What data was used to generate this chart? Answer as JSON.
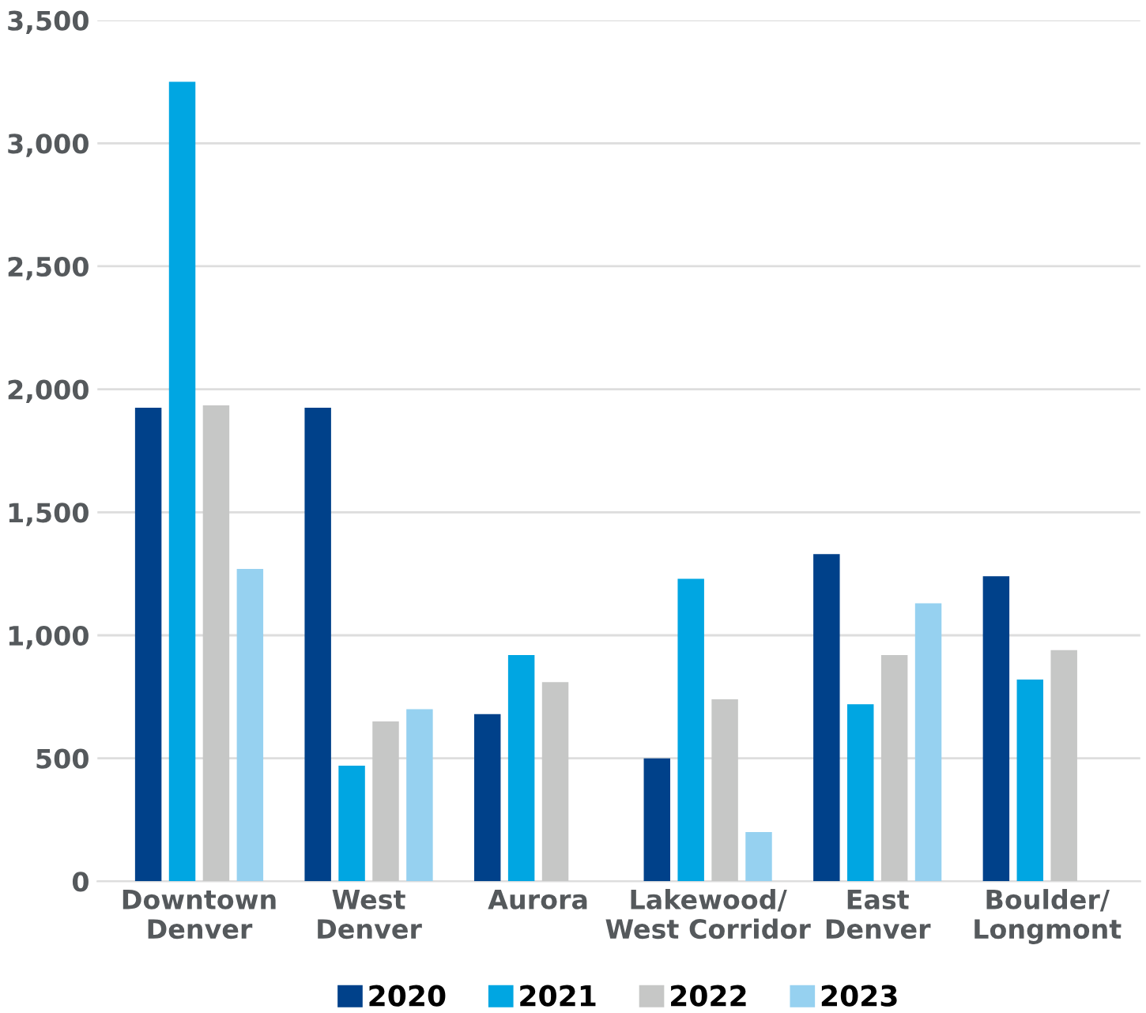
{
  "chart_data": {
    "type": "bar",
    "categories": [
      "Downtown\nDenver",
      "West\nDenver",
      "Aurora",
      "Lakewood/\nWest Corridor",
      "East\nDenver",
      "Boulder/\nLongmont"
    ],
    "series": [
      {
        "name": "2020",
        "color": "#00418a",
        "values": [
          1925,
          1925,
          680,
          500,
          1330,
          1240
        ]
      },
      {
        "name": "2021",
        "color": "#00a6e2",
        "values": [
          3250,
          470,
          920,
          1230,
          720,
          820
        ]
      },
      {
        "name": "2022",
        "color": "#c6c7c6",
        "values": [
          1935,
          650,
          810,
          740,
          920,
          940
        ]
      },
      {
        "name": "2023",
        "color": "#96d1f0",
        "values": [
          1270,
          700,
          null,
          200,
          1130,
          null
        ]
      }
    ],
    "ylim": [
      0,
      3500
    ],
    "yticks": [
      0,
      {
        "value": 500,
        "label": "500"
      },
      {
        "value": 1000,
        "label": "1,000"
      },
      {
        "value": 1500,
        "label": "1,500"
      },
      {
        "value": 2000,
        "label": "2,000"
      },
      {
        "value": 2500,
        "label": "2,500"
      },
      {
        "value": 3000,
        "label": "3,000"
      },
      {
        "value": 3500,
        "label": "3,500"
      }
    ],
    "grid": "y",
    "legend": "bottom"
  }
}
